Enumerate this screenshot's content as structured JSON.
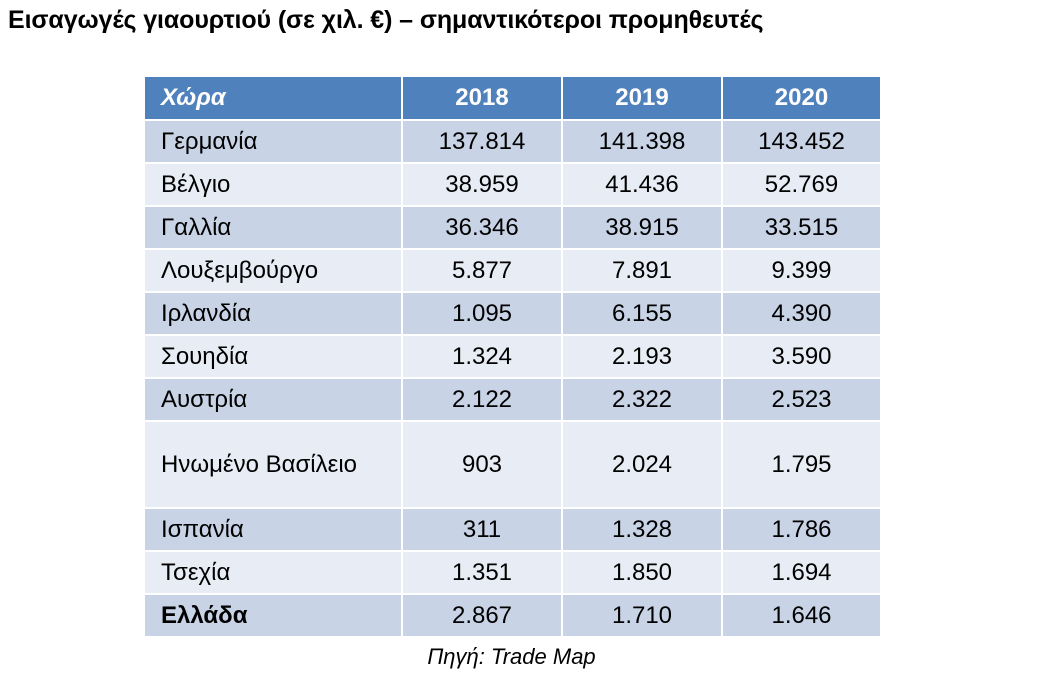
{
  "title": "Εισαγωγές γιαουρτιού (σε χιλ. €) – σημαντικότεροι προμηθευτές",
  "table": {
    "headers": [
      "Χώρα",
      "2018",
      "2019",
      "2020"
    ],
    "rows": [
      {
        "country": "Γερμανία",
        "values": [
          "137.814",
          "141.398",
          "143.452"
        ]
      },
      {
        "country": "Βέλγιο",
        "values": [
          "38.959",
          "41.436",
          "52.769"
        ]
      },
      {
        "country": "Γαλλία",
        "values": [
          "36.346",
          "38.915",
          "33.515"
        ]
      },
      {
        "country": "Λουξεμβούργο",
        "values": [
          "5.877",
          "7.891",
          "9.399"
        ]
      },
      {
        "country": "Ιρλανδία",
        "values": [
          "1.095",
          "6.155",
          "4.390"
        ]
      },
      {
        "country": "Σουηδία",
        "values": [
          "1.324",
          "2.193",
          "3.590"
        ]
      },
      {
        "country": "Αυστρία",
        "values": [
          "2.122",
          "2.322",
          "2.523"
        ]
      },
      {
        "country": "Ηνωμένο Βασίλειο",
        "values": [
          "903",
          "2.024",
          "1.795"
        ]
      },
      {
        "country": "Ισπανία",
        "values": [
          "311",
          "1.328",
          "1.786"
        ]
      },
      {
        "country": "Τσεχία",
        "values": [
          "1.351",
          "1.850",
          "1.694"
        ]
      },
      {
        "country": "Ελλάδα",
        "values": [
          "2.867",
          "1.710",
          "1.646"
        ]
      }
    ]
  },
  "source": "Πηγή: Trade Map",
  "colors": {
    "header_bg": "#4f81bd",
    "row_odd": "#c8d3e6",
    "row_even": "#e8edf5"
  }
}
